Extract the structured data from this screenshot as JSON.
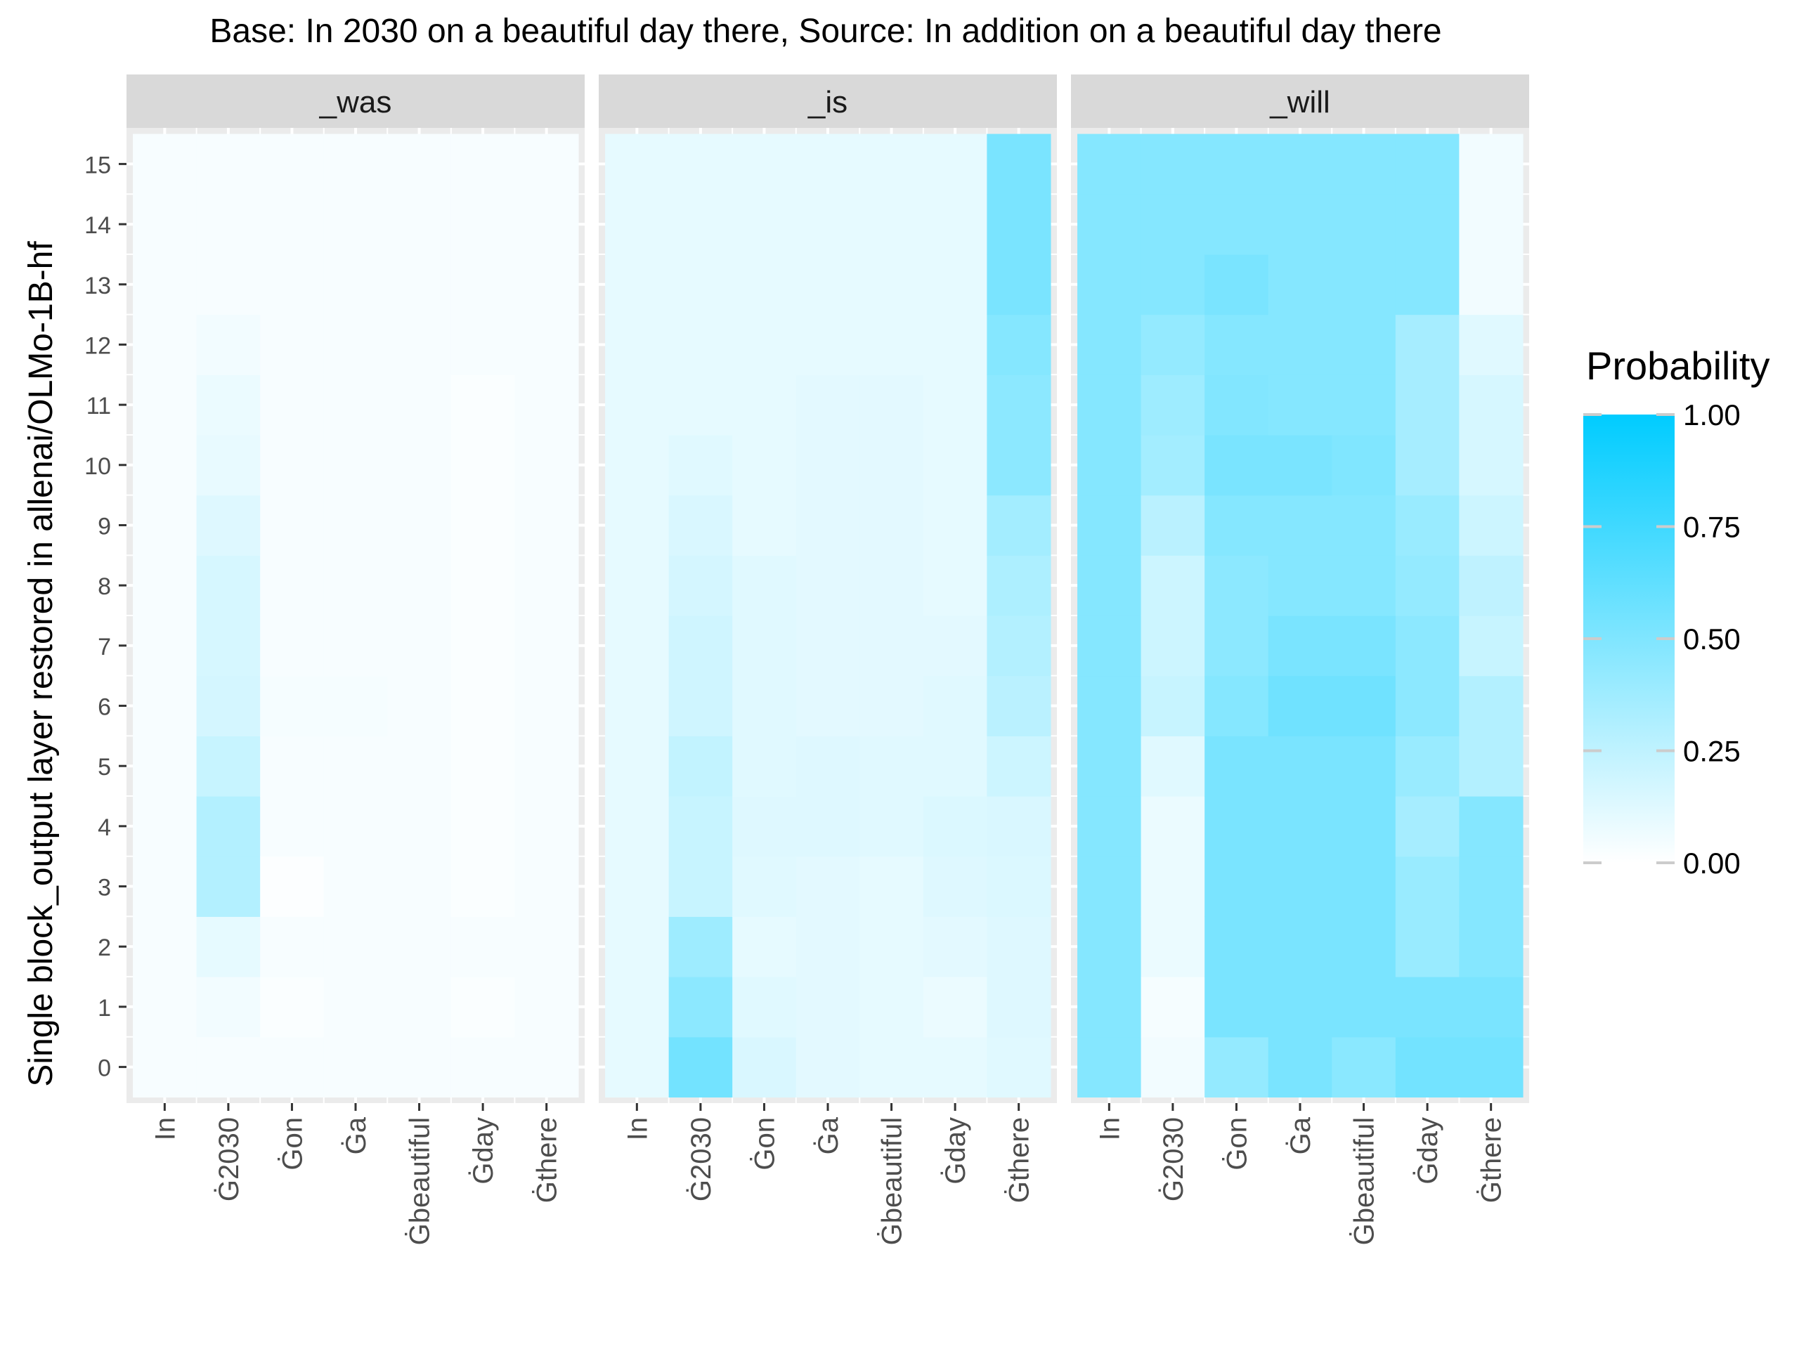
{
  "chart_data": {
    "type": "heatmap",
    "title": "Base: In 2030 on a beautiful day there, Source: In addition on a beautiful day there",
    "ylabel": "Single block_output layer restored in allenai/OLMo-1B-hf",
    "xlabel": "",
    "x_categories": [
      "In",
      "Ġ2030",
      "Ġon",
      "Ġa",
      "Ġbeautiful",
      "Ġday",
      "Ġthere"
    ],
    "y_categories": [
      "0",
      "1",
      "2",
      "3",
      "4",
      "5",
      "6",
      "7",
      "8",
      "9",
      "10",
      "11",
      "12",
      "13",
      "14",
      "15"
    ],
    "legend": {
      "title": "Probability",
      "placement": "right",
      "ticks": [
        "0.00",
        "0.25",
        "0.50",
        "0.75",
        "1.00"
      ],
      "tick_values": [
        0,
        0.25,
        0.5,
        0.75,
        1.0
      ],
      "low_color": "#ffffff",
      "high_color": "#00ccff"
    },
    "grid": true,
    "panel_background": "#ebebeb",
    "strip_background": "#d9d9d9",
    "facets": [
      {
        "label": "_was",
        "values": [
          [
            0.03,
            0.03,
            0.03,
            0.03,
            0.03,
            0.03,
            0.03,
            0.03,
            0.03,
            0.03,
            0.03,
            0.03,
            0.03,
            0.03,
            0.03,
            0.03
          ],
          [
            0.03,
            0.05,
            0.1,
            0.3,
            0.3,
            0.22,
            0.17,
            0.16,
            0.16,
            0.13,
            0.09,
            0.08,
            0.05,
            0.03,
            0.03,
            0.03
          ],
          [
            0.03,
            0.02,
            0.03,
            0.01,
            0.03,
            0.03,
            0.04,
            0.03,
            0.03,
            0.03,
            0.03,
            0.03,
            0.03,
            0.03,
            0.03,
            0.03
          ],
          [
            0.03,
            0.03,
            0.03,
            0.03,
            0.03,
            0.03,
            0.04,
            0.03,
            0.03,
            0.03,
            0.03,
            0.03,
            0.03,
            0.03,
            0.03,
            0.03
          ],
          [
            0.03,
            0.03,
            0.03,
            0.03,
            0.03,
            0.03,
            0.03,
            0.03,
            0.03,
            0.03,
            0.03,
            0.03,
            0.03,
            0.03,
            0.03,
            0.03
          ],
          [
            0.03,
            0.02,
            0.03,
            0.02,
            0.02,
            0.02,
            0.02,
            0.02,
            0.02,
            0.02,
            0.02,
            0.02,
            0.03,
            0.03,
            0.03,
            0.03
          ],
          [
            0.03,
            0.03,
            0.03,
            0.03,
            0.03,
            0.03,
            0.03,
            0.03,
            0.03,
            0.03,
            0.03,
            0.03,
            0.03,
            0.03,
            0.03,
            0.03
          ]
        ]
      },
      {
        "label": "_is",
        "values": [
          [
            0.1,
            0.1,
            0.1,
            0.1,
            0.1,
            0.1,
            0.1,
            0.1,
            0.1,
            0.1,
            0.1,
            0.1,
            0.1,
            0.1,
            0.1,
            0.1
          ],
          [
            0.55,
            0.45,
            0.38,
            0.22,
            0.22,
            0.24,
            0.19,
            0.19,
            0.17,
            0.15,
            0.12,
            0.1,
            0.1,
            0.1,
            0.1,
            0.1
          ],
          [
            0.15,
            0.12,
            0.1,
            0.12,
            0.13,
            0.12,
            0.12,
            0.12,
            0.12,
            0.1,
            0.1,
            0.1,
            0.1,
            0.1,
            0.1,
            0.1
          ],
          [
            0.11,
            0.11,
            0.11,
            0.11,
            0.13,
            0.13,
            0.11,
            0.11,
            0.11,
            0.11,
            0.11,
            0.11,
            0.1,
            0.1,
            0.1,
            0.1
          ],
          [
            0.1,
            0.1,
            0.1,
            0.1,
            0.12,
            0.12,
            0.11,
            0.11,
            0.11,
            0.11,
            0.11,
            0.11,
            0.1,
            0.1,
            0.1,
            0.1
          ],
          [
            0.1,
            0.08,
            0.11,
            0.13,
            0.14,
            0.12,
            0.12,
            0.11,
            0.1,
            0.1,
            0.1,
            0.1,
            0.1,
            0.1,
            0.1,
            0.1
          ],
          [
            0.12,
            0.13,
            0.13,
            0.14,
            0.15,
            0.2,
            0.27,
            0.3,
            0.32,
            0.36,
            0.45,
            0.45,
            0.48,
            0.52,
            0.52,
            0.52
          ]
        ]
      },
      {
        "label": "_will",
        "values": [
          [
            0.48,
            0.48,
            0.48,
            0.48,
            0.48,
            0.48,
            0.48,
            0.48,
            0.48,
            0.48,
            0.48,
            0.48,
            0.48,
            0.48,
            0.48,
            0.48
          ],
          [
            0.05,
            0.04,
            0.08,
            0.08,
            0.08,
            0.12,
            0.22,
            0.2,
            0.2,
            0.27,
            0.36,
            0.38,
            0.42,
            0.48,
            0.48,
            0.48
          ],
          [
            0.42,
            0.52,
            0.52,
            0.52,
            0.52,
            0.52,
            0.48,
            0.45,
            0.45,
            0.48,
            0.52,
            0.49,
            0.48,
            0.52,
            0.48,
            0.48
          ],
          [
            0.52,
            0.52,
            0.52,
            0.52,
            0.52,
            0.52,
            0.56,
            0.52,
            0.48,
            0.48,
            0.52,
            0.48,
            0.48,
            0.48,
            0.48,
            0.48
          ],
          [
            0.46,
            0.52,
            0.52,
            0.52,
            0.52,
            0.52,
            0.56,
            0.52,
            0.48,
            0.48,
            0.5,
            0.48,
            0.48,
            0.48,
            0.48,
            0.48
          ],
          [
            0.55,
            0.52,
            0.4,
            0.4,
            0.35,
            0.4,
            0.45,
            0.45,
            0.42,
            0.4,
            0.35,
            0.35,
            0.35,
            0.48,
            0.48,
            0.48
          ],
          [
            0.55,
            0.52,
            0.48,
            0.48,
            0.48,
            0.3,
            0.3,
            0.22,
            0.25,
            0.2,
            0.16,
            0.16,
            0.12,
            0.05,
            0.05,
            0.05
          ]
        ]
      }
    ]
  }
}
